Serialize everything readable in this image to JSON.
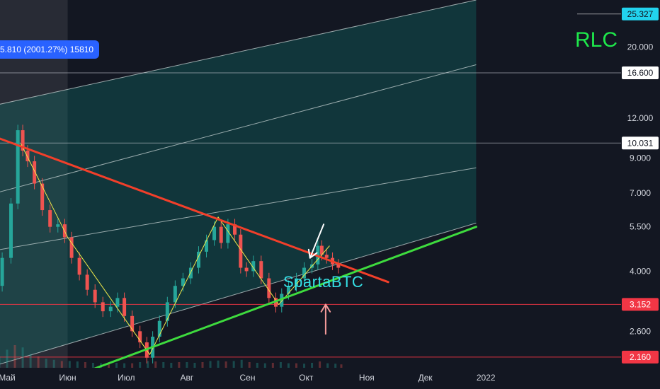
{
  "chart_data": {
    "type": "line",
    "ticker": "RLC",
    "author": "SpartaBTC",
    "measure_label": "5.810 (2001.27%) 15810",
    "scale": "log",
    "y_range": [
      2.0,
      28.0
    ],
    "y_axis_ticks": [
      {
        "value": 20.0,
        "label": "20.000"
      },
      {
        "value": 12.0,
        "label": "12.000"
      },
      {
        "value": 9.0,
        "label": "9.000"
      },
      {
        "value": 7.0,
        "label": "7.000"
      },
      {
        "value": 5.5,
        "label": "5.500"
      },
      {
        "value": 4.0,
        "label": "4.000"
      },
      {
        "value": 2.6,
        "label": "2.600"
      }
    ],
    "price_levels": [
      {
        "value": 25.327,
        "label": "25.327",
        "style": "cyan"
      },
      {
        "value": 16.6,
        "label": "16.600",
        "style": "white"
      },
      {
        "value": 10.031,
        "label": "10.031",
        "style": "white"
      },
      {
        "value": 3.152,
        "label": "3.152",
        "style": "red"
      },
      {
        "value": 2.16,
        "label": "2.160",
        "style": "red"
      }
    ],
    "x_axis_labels": [
      "Май",
      "Июн",
      "Июл",
      "Авг",
      "Сен",
      "Окт",
      "Ноя",
      "Дек",
      "2022"
    ],
    "x_day_range": [
      0,
      240
    ],
    "x_label_days": [
      0,
      31,
      61,
      92,
      123,
      153,
      184,
      214,
      245
    ],
    "highlight_range_days": [
      -10,
      31
    ],
    "price_series": [
      [
        -10,
        3.1
      ],
      [
        -5,
        3.6
      ],
      [
        0,
        4.4
      ],
      [
        4,
        6.5
      ],
      [
        7,
        11.0
      ],
      [
        9,
        9.5
      ],
      [
        12,
        8.8
      ],
      [
        16,
        7.5
      ],
      [
        20,
        6.2
      ],
      [
        24,
        5.5
      ],
      [
        28,
        5.6
      ],
      [
        31,
        5.1
      ],
      [
        35,
        4.4
      ],
      [
        39,
        3.9
      ],
      [
        43,
        3.5
      ],
      [
        47,
        3.2
      ],
      [
        51,
        3.0
      ],
      [
        55,
        3.1
      ],
      [
        58,
        3.3
      ],
      [
        62,
        2.9
      ],
      [
        66,
        2.6
      ],
      [
        70,
        2.4
      ],
      [
        73,
        2.15
      ],
      [
        76,
        2.5
      ],
      [
        80,
        2.8
      ],
      [
        84,
        3.2
      ],
      [
        88,
        3.6
      ],
      [
        92,
        3.8
      ],
      [
        96,
        4.1
      ],
      [
        100,
        4.6
      ],
      [
        104,
        5.0
      ],
      [
        108,
        5.5
      ],
      [
        111,
        4.9
      ],
      [
        115,
        5.6
      ],
      [
        118,
        5.2
      ],
      [
        121,
        4.1
      ],
      [
        124,
        4.0
      ],
      [
        128,
        4.3
      ],
      [
        132,
        3.8
      ],
      [
        136,
        3.3
      ],
      [
        139,
        3.1
      ],
      [
        142,
        3.4
      ],
      [
        146,
        3.6
      ],
      [
        150,
        3.8
      ],
      [
        154,
        4.1
      ],
      [
        158,
        4.2
      ],
      [
        160,
        4.8
      ],
      [
        162,
        4.5
      ],
      [
        165,
        4.4
      ],
      [
        168,
        4.2
      ],
      [
        171,
        4.1
      ]
    ],
    "volume": [
      [
        -8,
        0.3
      ],
      [
        -4,
        0.5
      ],
      [
        0,
        0.8
      ],
      [
        4,
        1.0
      ],
      [
        8,
        0.9
      ],
      [
        12,
        0.6
      ],
      [
        16,
        0.5
      ],
      [
        20,
        0.4
      ],
      [
        24,
        0.35
      ],
      [
        28,
        0.3
      ],
      [
        32,
        0.3
      ],
      [
        36,
        0.28
      ],
      [
        40,
        0.25
      ],
      [
        44,
        0.22
      ],
      [
        48,
        0.2
      ],
      [
        52,
        0.2
      ],
      [
        56,
        0.22
      ],
      [
        60,
        0.2
      ],
      [
        64,
        0.2
      ],
      [
        68,
        0.25
      ],
      [
        72,
        0.3
      ],
      [
        76,
        0.28
      ],
      [
        80,
        0.25
      ],
      [
        84,
        0.22
      ],
      [
        88,
        0.25
      ],
      [
        92,
        0.25
      ],
      [
        96,
        0.22
      ],
      [
        100,
        0.25
      ],
      [
        104,
        0.3
      ],
      [
        108,
        0.32
      ],
      [
        112,
        0.28
      ],
      [
        116,
        0.3
      ],
      [
        120,
        0.35
      ],
      [
        124,
        0.25
      ],
      [
        128,
        0.22
      ],
      [
        132,
        0.2
      ],
      [
        136,
        0.22
      ],
      [
        140,
        0.25
      ],
      [
        144,
        0.2
      ],
      [
        148,
        0.2
      ],
      [
        152,
        0.18
      ],
      [
        156,
        0.22
      ],
      [
        160,
        0.28
      ],
      [
        164,
        0.2
      ],
      [
        168,
        0.18
      ],
      [
        171,
        0.15
      ]
    ],
    "zigzag": [
      [
        7,
        10.0
      ],
      [
        31,
        5.1
      ],
      [
        73,
        2.2
      ],
      [
        108,
        5.9
      ],
      [
        139,
        3.15
      ],
      [
        165,
        4.8
      ]
    ],
    "trendlines": [
      {
        "name": "resistance",
        "color": "#f23f2a",
        "points": [
          [
            -10,
            10.7
          ],
          [
            195,
            3.7
          ]
        ]
      },
      {
        "name": "support",
        "color": "#3edb3e",
        "points": [
          [
            36,
            1.9
          ],
          [
            240,
            5.5
          ]
        ]
      }
    ],
    "channel_lines": [
      {
        "points": [
          [
            -10,
            2.0
          ],
          [
            240,
            5.65
          ]
        ]
      },
      {
        "points": [
          [
            -10,
            4.6
          ],
          [
            240,
            8.4
          ]
        ]
      },
      {
        "points": [
          [
            -10,
            6.9
          ],
          [
            240,
            17.6
          ]
        ]
      },
      {
        "points": [
          [
            -10,
            13.0
          ],
          [
            240,
            28.0
          ]
        ]
      }
    ],
    "arrows": [
      {
        "color": "#ffffff",
        "from": [
          162,
          5.6
        ],
        "to": [
          155,
          4.4
        ]
      },
      {
        "color": "#f49a9a",
        "from": [
          163,
          2.55
        ],
        "to": [
          163,
          3.15
        ]
      }
    ],
    "colors": {
      "background": "#131722",
      "channel_fill": "#0f6f6a",
      "up_candle": "#26a69a",
      "down_candle": "#ef5350",
      "zigzag": "#f0e84a",
      "symbol": "#1ee84b",
      "author": "#35e0e6"
    }
  }
}
